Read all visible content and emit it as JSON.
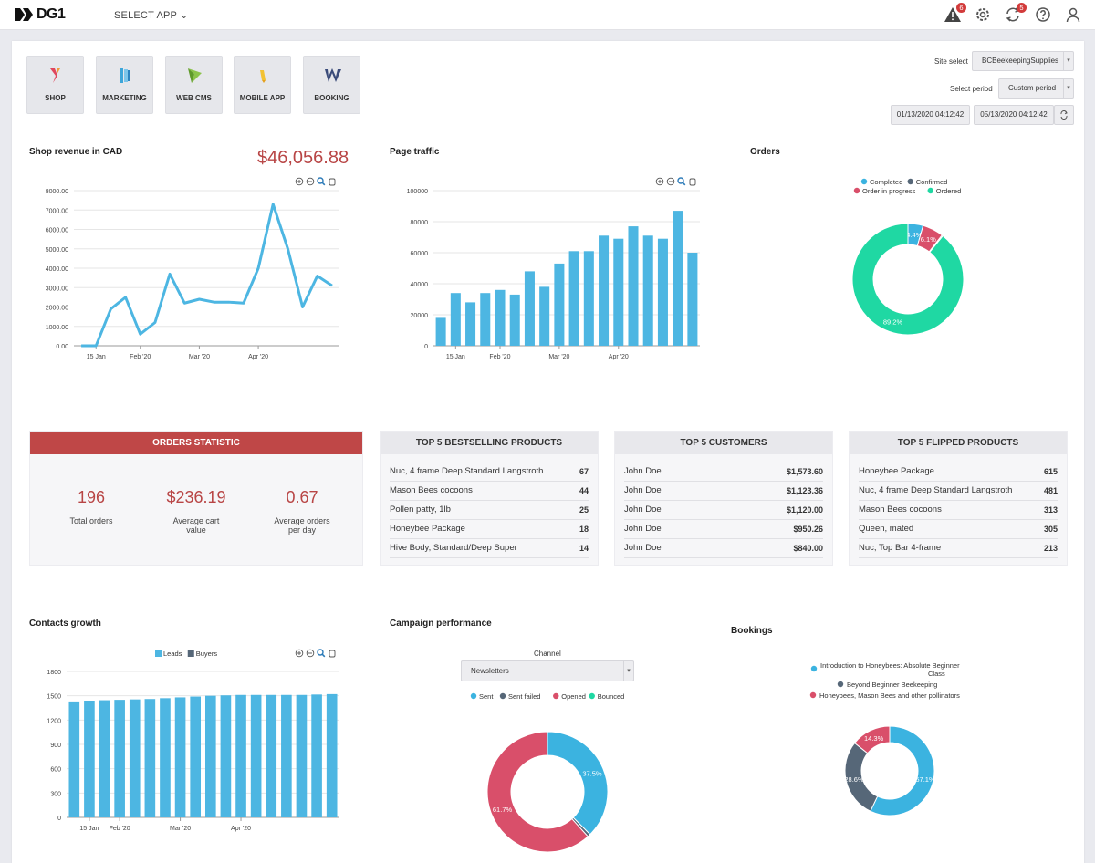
{
  "header": {
    "logo_text": "DG1",
    "select_app": "SELECT APP",
    "alerts_badge": "6",
    "sync_badge": "5"
  },
  "apps": [
    {
      "label": "SHOP",
      "color": "#e0475c"
    },
    {
      "label": "MARKETING",
      "color": "#3ea6d9"
    },
    {
      "label": "WEB CMS",
      "color": "#8bc34a"
    },
    {
      "label": "MOBILE APP",
      "color": "#f2c233"
    },
    {
      "label": "BOOKING",
      "color": "#3b4c7a"
    }
  ],
  "filters": {
    "site_label": "Site select",
    "site_value": "BCBeekeepingSupplies",
    "period_label": "Select period",
    "period_value": "Custom period",
    "date_from": "01/13/2020 04:12:42",
    "date_to": "05/13/2020 04:12:42"
  },
  "revenue": {
    "title": "Shop revenue in CAD",
    "total": "$46,056.88"
  },
  "traffic": {
    "title": "Page traffic"
  },
  "orders_chart": {
    "title": "Orders"
  },
  "orders_statistic": {
    "title": "ORDERS STATISTIC",
    "stats": [
      {
        "value": "196",
        "label": "Total orders"
      },
      {
        "value": "$236.19",
        "label": "Average cart value"
      },
      {
        "value": "0.67",
        "label": "Average orders per day"
      }
    ]
  },
  "top_products": {
    "title": "TOP 5 BESTSELLING PRODUCTS",
    "rows": [
      {
        "name": "Nuc, 4 frame Deep Standard Langstroth",
        "value": "67"
      },
      {
        "name": "Mason Bees cocoons",
        "value": "44"
      },
      {
        "name": "Pollen patty, 1lb",
        "value": "25"
      },
      {
        "name": "Honeybee Package",
        "value": "18"
      },
      {
        "name": "Hive Body, Standard/Deep Super",
        "value": "14"
      }
    ]
  },
  "top_customers": {
    "title": "TOP 5 CUSTOMERS",
    "rows": [
      {
        "name": "John Doe",
        "value": "$1,573.60"
      },
      {
        "name": "John Doe",
        "value": "$1,123.36"
      },
      {
        "name": "John Doe",
        "value": "$1,120.00"
      },
      {
        "name": "John Doe",
        "value": "$950.26"
      },
      {
        "name": "John Doe",
        "value": "$840.00"
      }
    ]
  },
  "top_flipped": {
    "title": "TOP 5 FLIPPED PRODUCTS",
    "rows": [
      {
        "name": "Honeybee Package",
        "value": "615"
      },
      {
        "name": "Nuc, 4 frame Deep Standard Langstroth",
        "value": "481"
      },
      {
        "name": "Mason Bees cocoons",
        "value": "313"
      },
      {
        "name": "Queen, mated",
        "value": "305"
      },
      {
        "name": "Nuc, Top Bar 4-frame",
        "value": "213"
      }
    ]
  },
  "contacts": {
    "title": "Contacts growth"
  },
  "campaign": {
    "title": "Campaign performance",
    "channel_label": "Channel",
    "channel_value": "Newsletters"
  },
  "bookings": {
    "title": "Bookings"
  },
  "chart_data": [
    {
      "id": "revenue",
      "type": "line",
      "title": "Shop revenue in CAD",
      "ylim": [
        0,
        8000
      ],
      "yticks": [
        "0.00",
        "1000.00",
        "2000.00",
        "3000.00",
        "4000.00",
        "5000.00",
        "6000.00",
        "7000.00",
        "8000.00"
      ],
      "xticks": [
        {
          "label": "15 Jan",
          "index": 1
        },
        {
          "label": "Feb '20",
          "index": 4
        },
        {
          "label": "Mar '20",
          "index": 8
        },
        {
          "label": "Apr '20",
          "index": 12
        }
      ],
      "series": [
        {
          "name": "Revenue",
          "color": "#4db6e2",
          "values": [
            0,
            0,
            1900,
            2500,
            600,
            1200,
            3700,
            2200,
            2400,
            2250,
            2250,
            2200,
            4000,
            7300,
            5000,
            2000,
            3600,
            3100
          ]
        }
      ]
    },
    {
      "id": "traffic",
      "type": "bar",
      "title": "Page traffic",
      "ylim": [
        0,
        100000
      ],
      "yticks": [
        "0",
        "20000",
        "40000",
        "60000",
        "80000",
        "100000"
      ],
      "xticks": [
        {
          "label": "15 Jan",
          "index": 1
        },
        {
          "label": "Feb '20",
          "index": 4
        },
        {
          "label": "Mar '20",
          "index": 8
        },
        {
          "label": "Apr '20",
          "index": 12
        }
      ],
      "series": [
        {
          "name": "Traffic",
          "color": "#4db6e2",
          "values": [
            18000,
            34000,
            28000,
            34000,
            36000,
            33000,
            48000,
            38000,
            53000,
            61000,
            61000,
            71000,
            69000,
            77000,
            71000,
            69000,
            87000,
            60000
          ]
        }
      ]
    },
    {
      "id": "orders",
      "type": "pie",
      "title": "Orders",
      "legend": [
        {
          "name": "Completed",
          "color": "#3bb3e0"
        },
        {
          "name": "Confirmed",
          "color": "#566778"
        },
        {
          "name": "Order in progress",
          "color": "#d94f6a"
        },
        {
          "name": "Ordered",
          "color": "#1fd8a3"
        }
      ],
      "slices": [
        {
          "name": "Completed",
          "value": 4.4,
          "label": "4.4%",
          "color": "#3bb3e0"
        },
        {
          "name": "Order in progress",
          "value": 6.1,
          "label": "6.1%",
          "color": "#d94f6a"
        },
        {
          "name": "Confirmed",
          "value": 0.3,
          "label": "",
          "color": "#566778"
        },
        {
          "name": "Ordered",
          "value": 89.2,
          "label": "89.2%",
          "color": "#1fd8a3"
        }
      ]
    },
    {
      "id": "contacts",
      "type": "bar",
      "title": "Contacts growth",
      "ylim": [
        0,
        1800
      ],
      "yticks": [
        "0",
        "300",
        "600",
        "900",
        "1200",
        "1500",
        "1800"
      ],
      "legend": [
        {
          "name": "Leads",
          "color": "#4db6e2"
        },
        {
          "name": "Buyers",
          "color": "#566778"
        }
      ],
      "xticks": [
        {
          "label": "15 Jan",
          "index": 1
        },
        {
          "label": "Feb '20",
          "index": 3
        },
        {
          "label": "Mar '20",
          "index": 7
        },
        {
          "label": "Apr '20",
          "index": 11
        }
      ],
      "series": [
        {
          "name": "Leads",
          "color": "#4db6e2",
          "values": [
            1430,
            1440,
            1445,
            1450,
            1455,
            1460,
            1470,
            1480,
            1490,
            1500,
            1505,
            1510,
            1510,
            1510,
            1510,
            1510,
            1515,
            1520
          ]
        }
      ]
    },
    {
      "id": "campaign",
      "type": "pie",
      "title": "Campaign performance",
      "legend": [
        {
          "name": "Sent",
          "color": "#3bb3e0"
        },
        {
          "name": "Sent failed",
          "color": "#566778"
        },
        {
          "name": "Opened",
          "color": "#d94f6a"
        },
        {
          "name": "Bounced",
          "color": "#1fd8a3"
        }
      ],
      "slices": [
        {
          "name": "Sent",
          "value": 37.5,
          "label": "37.5%",
          "color": "#3bb3e0"
        },
        {
          "name": "Sent failed",
          "value": 0.8,
          "label": "",
          "color": "#566778"
        },
        {
          "name": "Opened",
          "value": 61.7,
          "label": "61.7%",
          "color": "#d94f6a"
        }
      ]
    },
    {
      "id": "bookings",
      "type": "pie",
      "title": "Bookings",
      "legend": [
        {
          "name": "Introduction to Honeybees: Absolute Beginner Class",
          "color": "#3bb3e0"
        },
        {
          "name": "Beyond Beginner Beekeeping",
          "color": "#566778"
        },
        {
          "name": "Honeybees, Mason Bees and other pollinators",
          "color": "#d94f6a"
        }
      ],
      "slices": [
        {
          "name": "Introduction to Honeybees: Absolute Beginner Class",
          "value": 57.1,
          "label": "57.1%",
          "color": "#3bb3e0"
        },
        {
          "name": "Beyond Beginner Beekeeping",
          "value": 28.6,
          "label": "28.6%",
          "color": "#566778"
        },
        {
          "name": "Honeybees, Mason Bees and other pollinators",
          "value": 14.3,
          "label": "14.3%",
          "color": "#d94f6a"
        }
      ]
    }
  ]
}
